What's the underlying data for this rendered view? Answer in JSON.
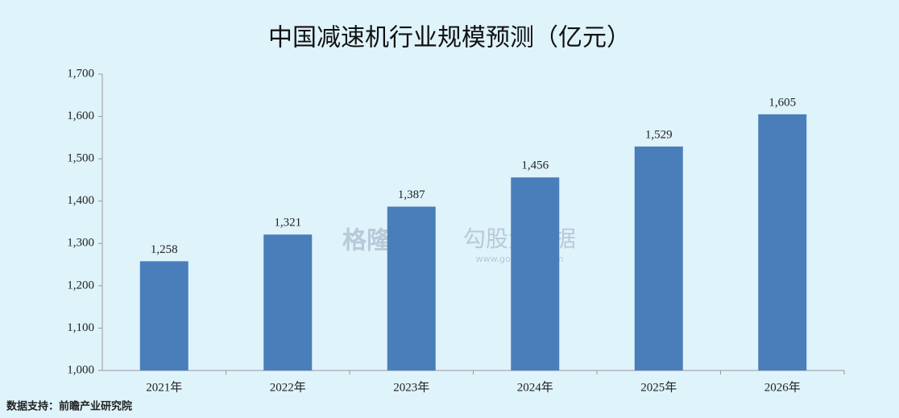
{
  "chart_data": {
    "type": "bar",
    "title": "中国减速机行业规模预测（亿元）",
    "categories": [
      "2021年",
      "2022年",
      "2023年",
      "2024年",
      "2025年",
      "2026年"
    ],
    "values": [
      1258,
      1321,
      1387,
      1456,
      1529,
      1605
    ],
    "value_labels": [
      "1,258",
      "1,321",
      "1,387",
      "1,456",
      "1,529",
      "1,605"
    ],
    "color": "#4a7ebb",
    "ylim": [
      1000,
      1700
    ],
    "yticks": [
      {
        "value": 1000,
        "label": "1,000"
      },
      {
        "value": 1100,
        "label": "1,100"
      },
      {
        "value": 1200,
        "label": "1,200"
      },
      {
        "value": 1300,
        "label": "1,300"
      },
      {
        "value": 1400,
        "label": "1,400"
      },
      {
        "value": 1500,
        "label": "1,500"
      },
      {
        "value": 1600,
        "label": "1,600"
      },
      {
        "value": 1700,
        "label": "1,700"
      }
    ],
    "source": "数据支持：前瞻产业研究院",
    "watermarks": [
      "格隆汇",
      "勾股大数据",
      "www.gogudata.com"
    ]
  }
}
